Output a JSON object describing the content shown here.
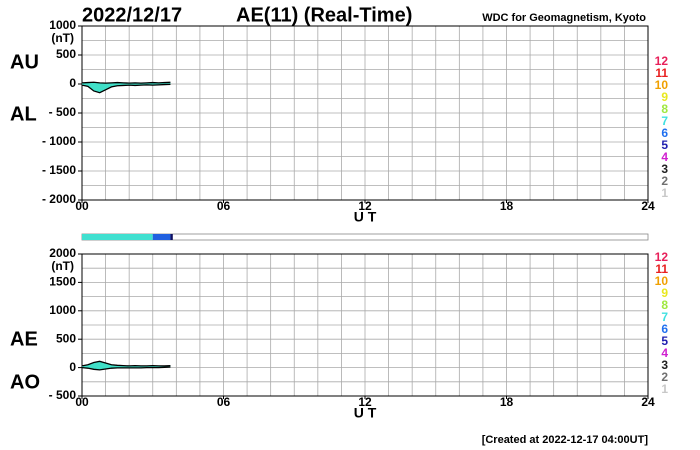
{
  "header": {
    "date": "2022/12/17",
    "title": "AE(11) (Real-Time)",
    "source": "WDC for Geomagnetism, Kyoto"
  },
  "footer": "[Created at 2022-12-17 04:00UT]",
  "station_legend": {
    "labels": [
      12,
      11,
      10,
      9,
      8,
      7,
      6,
      5,
      4,
      3,
      2,
      1
    ],
    "colors": [
      "#e8205a",
      "#e82020",
      "#f0a000",
      "#e8e820",
      "#a0e840",
      "#40e0e0",
      "#2070f0",
      "#2020b0",
      "#d020d0",
      "#202020",
      "#707070",
      "#c8c8c8"
    ]
  },
  "station_bar": [
    {
      "from": 0,
      "to": 3,
      "color": "#40e0d0"
    },
    {
      "from": 3,
      "to": 3.75,
      "color": "#2060e0"
    },
    {
      "from": 3.75,
      "to": 3.85,
      "color": "#101060"
    }
  ],
  "chart_data": [
    {
      "type": "line",
      "unit": "(nT)",
      "xlabel": "U T",
      "fill_color": "#40e0c8",
      "x": [
        0,
        0.25,
        0.5,
        0.75,
        1,
        1.25,
        1.5,
        1.75,
        2,
        2.25,
        2.5,
        2.75,
        3,
        3.25,
        3.5,
        3.75
      ],
      "series": [
        {
          "name": "AU",
          "color": "#000000",
          "values": [
            20,
            25,
            30,
            20,
            15,
            20,
            25,
            20,
            15,
            20,
            15,
            20,
            25,
            20,
            25,
            30
          ]
        },
        {
          "name": "AL",
          "color": "#000000",
          "values": [
            -20,
            -40,
            -120,
            -150,
            -100,
            -50,
            -30,
            -25,
            -20,
            -25,
            -20,
            -15,
            -20,
            -15,
            -10,
            -5
          ]
        }
      ],
      "xlim": [
        0,
        24
      ],
      "xticks": [
        {
          "value": 0,
          "label": "00"
        },
        {
          "value": 6,
          "label": "06"
        },
        12,
        18,
        24
      ],
      "ylim": [
        -2000,
        1000
      ],
      "yticks": [
        1000,
        500,
        0,
        {
          "value": -500,
          "label": "- 500"
        },
        {
          "value": -1000,
          "label": "- 1000"
        },
        {
          "value": -1500,
          "label": "- 1500"
        },
        {
          "value": -2000,
          "label": "- 2000"
        }
      ],
      "xgrid": [
        0,
        1,
        2,
        3,
        4,
        5,
        6,
        7,
        8,
        9,
        10,
        11,
        12,
        13,
        14,
        15,
        16,
        17,
        18,
        19,
        20,
        21,
        22,
        23,
        24
      ],
      "ygrid": [
        -2000,
        -1750,
        -1500,
        -1250,
        -1000,
        -750,
        -500,
        -250,
        0,
        250,
        500,
        750,
        1000
      ]
    },
    {
      "type": "line",
      "unit": "(nT)",
      "xlabel": "U T",
      "fill_color": "#40e0c8",
      "x": [
        0,
        0.25,
        0.5,
        0.75,
        1,
        1.25,
        1.5,
        1.75,
        2,
        2.25,
        2.5,
        2.75,
        3,
        3.25,
        3.5,
        3.75
      ],
      "series": [
        {
          "name": "AE",
          "color": "#000000",
          "values": [
            30,
            50,
            90,
            110,
            80,
            50,
            40,
            35,
            30,
            35,
            30,
            30,
            35,
            30,
            30,
            35
          ]
        },
        {
          "name": "AO",
          "color": "#000000",
          "values": [
            0,
            -10,
            -30,
            -40,
            -25,
            -10,
            -5,
            -5,
            -5,
            -5,
            -5,
            0,
            0,
            0,
            5,
            10
          ]
        }
      ],
      "xlim": [
        0,
        24
      ],
      "xticks": [
        {
          "value": 0,
          "label": "00"
        },
        {
          "value": 6,
          "label": "06"
        },
        12,
        18,
        24
      ],
      "ylim": [
        -500,
        2000
      ],
      "yticks": [
        2000,
        1500,
        1000,
        500,
        0,
        {
          "value": -500,
          "label": "- 500"
        }
      ],
      "xgrid": [
        0,
        1,
        2,
        3,
        4,
        5,
        6,
        7,
        8,
        9,
        10,
        11,
        12,
        13,
        14,
        15,
        16,
        17,
        18,
        19,
        20,
        21,
        22,
        23,
        24
      ],
      "ygrid": [
        -500,
        -250,
        0,
        250,
        500,
        750,
        1000,
        1250,
        1500,
        1750,
        2000
      ]
    }
  ]
}
